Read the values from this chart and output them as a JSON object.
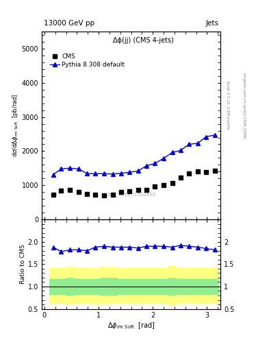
{
  "title_left": "13000 GeV pp",
  "title_right": "Jets",
  "panel_title": "Δϕ(jj) (CMS 4-jets)",
  "watermark": "CMS_2021_I1932460",
  "right_label": "Rivet 3.1.10, 2.8M events\nmcplots.cern.ch [arXiv:1306.3436]",
  "ylabel_ratio": "Ratio to CMS",
  "ylim_main": [
    0,
    5500
  ],
  "ylim_ratio": [
    0.5,
    2.5
  ],
  "yticks_main": [
    0,
    1000,
    2000,
    3000,
    4000,
    5000
  ],
  "yticks_ratio": [
    0.5,
    1.0,
    1.5,
    2.0
  ],
  "yticks_ratio_right": [
    0.5,
    1.0,
    1.5,
    2.0
  ],
  "xlim": [
    -0.05,
    3.25
  ],
  "xticks": [
    0,
    1,
    2,
    3
  ],
  "cms_x": [
    0.16,
    0.31,
    0.47,
    0.63,
    0.79,
    0.94,
    1.1,
    1.26,
    1.41,
    1.57,
    1.73,
    1.88,
    2.04,
    2.2,
    2.36,
    2.51,
    2.67,
    2.83,
    2.98,
    3.14
  ],
  "cms_y": [
    720,
    840,
    860,
    800,
    750,
    720,
    700,
    720,
    800,
    830,
    870,
    860,
    960,
    1000,
    1070,
    1220,
    1350,
    1400,
    1380,
    1420
  ],
  "pythia_x": [
    0.16,
    0.31,
    0.47,
    0.63,
    0.79,
    0.94,
    1.1,
    1.26,
    1.41,
    1.57,
    1.73,
    1.88,
    2.04,
    2.2,
    2.36,
    2.51,
    2.67,
    2.83,
    2.98,
    3.14
  ],
  "pythia_y": [
    1310,
    1480,
    1500,
    1480,
    1340,
    1340,
    1340,
    1330,
    1350,
    1380,
    1420,
    1570,
    1640,
    1790,
    1960,
    2020,
    2200,
    2230,
    2420,
    2470
  ],
  "ratio_x": [
    0.16,
    0.31,
    0.47,
    0.63,
    0.79,
    0.94,
    1.1,
    1.26,
    1.41,
    1.57,
    1.73,
    1.88,
    2.04,
    2.2,
    2.36,
    2.51,
    2.67,
    2.83,
    2.98,
    3.14
  ],
  "ratio_y": [
    1.88,
    1.78,
    1.82,
    1.82,
    1.8,
    1.88,
    1.9,
    1.88,
    1.88,
    1.88,
    1.86,
    1.9,
    1.9,
    1.9,
    1.88,
    1.92,
    1.9,
    1.88,
    1.85,
    1.82
  ],
  "green_band_lo": [
    0.82,
    0.82,
    0.8,
    0.82,
    0.82,
    0.82,
    0.8,
    0.8,
    0.82,
    0.82,
    0.82,
    0.82,
    0.82,
    0.82,
    0.8,
    0.82,
    0.82,
    0.82,
    0.82,
    0.82
  ],
  "green_band_hi": [
    1.18,
    1.18,
    1.2,
    1.18,
    1.18,
    1.18,
    1.2,
    1.2,
    1.18,
    1.18,
    1.18,
    1.18,
    1.18,
    1.18,
    1.2,
    1.18,
    1.18,
    1.18,
    1.18,
    1.18
  ],
  "yellow_band_lo": [
    0.62,
    0.62,
    0.6,
    0.62,
    0.62,
    0.6,
    0.6,
    0.62,
    0.62,
    0.62,
    0.62,
    0.62,
    0.62,
    0.62,
    0.58,
    0.62,
    0.62,
    0.62,
    0.62,
    0.62
  ],
  "yellow_band_hi": [
    1.43,
    1.43,
    1.45,
    1.43,
    1.43,
    1.42,
    1.45,
    1.45,
    1.43,
    1.43,
    1.43,
    1.43,
    1.43,
    1.43,
    1.47,
    1.43,
    1.43,
    1.43,
    1.43,
    1.43
  ],
  "cms_color": "#000000",
  "pythia_color": "#0000cc",
  "green_color": "#90ee90",
  "yellow_color": "#ffff80",
  "bg_color": "#ffffff"
}
